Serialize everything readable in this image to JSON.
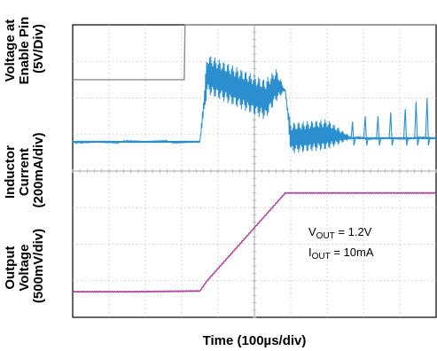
{
  "chart_data": {
    "type": "line",
    "title": "",
    "xlabel": "Time (100µs/div)",
    "x_divisions": 10,
    "y_divisions": 8,
    "grid": true,
    "channels": [
      {
        "name": "enable",
        "label_lines": [
          "Voltage at",
          "Enable Pin",
          "(5V/Div)"
        ],
        "color": "#8c8c8c",
        "scale": "5V/div",
        "x_div": [
          0,
          3.07,
          3.09,
          10
        ],
        "y_div": [
          1.5,
          1.5,
          0,
          0
        ]
      },
      {
        "name": "inductor-current",
        "label_lines": [
          "Inductor",
          "Current",
          "(200mA/div)"
        ],
        "color": "#2b8fcf",
        "scale": "200mA/div",
        "x_div": [
          0,
          3.5,
          3.7,
          5.3,
          5.6,
          5.85,
          6.0,
          7.0,
          7.7,
          10
        ],
        "y_div": [
          3.2,
          3.2,
          1.35,
          2.05,
          1.65,
          1.8,
          3.1,
          3.0,
          3.1,
          3.1
        ],
        "ripple_div": [
          0,
          0,
          0.55,
          0.55,
          0.45,
          0,
          0.42,
          0.42,
          0,
          0
        ],
        "spikes_x_div": [
          7.7,
          8.05,
          8.4,
          8.75,
          9.15,
          9.45,
          9.75
        ],
        "spikes_height_div": [
          0.45,
          0.6,
          0.6,
          0.7,
          0.8,
          1.0,
          1.1
        ]
      },
      {
        "name": "output-voltage",
        "label_lines": [
          "Output",
          "Voltage",
          "(500mV/div)"
        ],
        "color": "#b0449a",
        "scale": "500mV/div",
        "x_div": [
          0,
          1.7,
          3.5,
          3.7,
          5.85,
          10
        ],
        "y_div": [
          7.3,
          7.3,
          7.28,
          7.0,
          4.6,
          4.6
        ]
      }
    ],
    "annotations": [
      {
        "name": "vout",
        "base": "V",
        "sub": "OUT",
        "value": " = 1.2V"
      },
      {
        "name": "iout",
        "base": "I",
        "sub": "OUT",
        "value": " = 10mA"
      }
    ]
  }
}
